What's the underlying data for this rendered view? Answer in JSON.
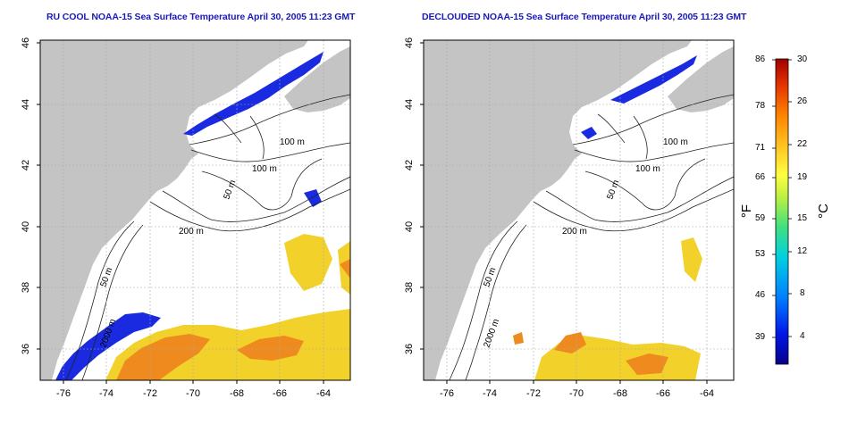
{
  "maps": [
    {
      "id": "left",
      "title": "RU COOL NOAA-15 Sea Surface Temperature April 30, 2005 11:23 GMT",
      "contour_labels": [
        "100 m",
        "100 m",
        "50 m",
        "200 m",
        "50 m",
        "2000 m"
      ]
    },
    {
      "id": "right",
      "title": "DECLOUDED NOAA-15 Sea Surface Temperature April 30, 2005 11:23 GMT",
      "contour_labels": [
        "100 m",
        "100 m",
        "50 m",
        "200 m",
        "50 m",
        "2000 m"
      ]
    }
  ],
  "axes": {
    "lon_ticks": [
      "-76",
      "-74",
      "-72",
      "-70",
      "-68",
      "-66",
      "-64"
    ],
    "lat_ticks": [
      "46",
      "44",
      "42",
      "40",
      "38",
      "36"
    ]
  },
  "colorbar": {
    "fahrenheit_ticks": [
      "86",
      "78",
      "71",
      "66",
      "59",
      "53",
      "46",
      "39"
    ],
    "celsius_ticks": [
      "30",
      "26",
      "22",
      "19",
      "15",
      "12",
      "8",
      "4"
    ],
    "fahrenheit_unit": "°F",
    "celsius_unit": "°C",
    "colors": [
      "#08008a",
      "#0018e8",
      "#0080ff",
      "#00d0e0",
      "#40e080",
      "#c0f040",
      "#ffff40",
      "#ffc020",
      "#ff8000",
      "#e03000",
      "#a00000"
    ]
  },
  "colors": {
    "land": "#c4c4c4",
    "water": "#ffffff",
    "cold": "#1a2ae0",
    "warm_yellow": "#f2d22a",
    "warm_orange": "#ee8a1e",
    "title": "#1a1ab8"
  }
}
